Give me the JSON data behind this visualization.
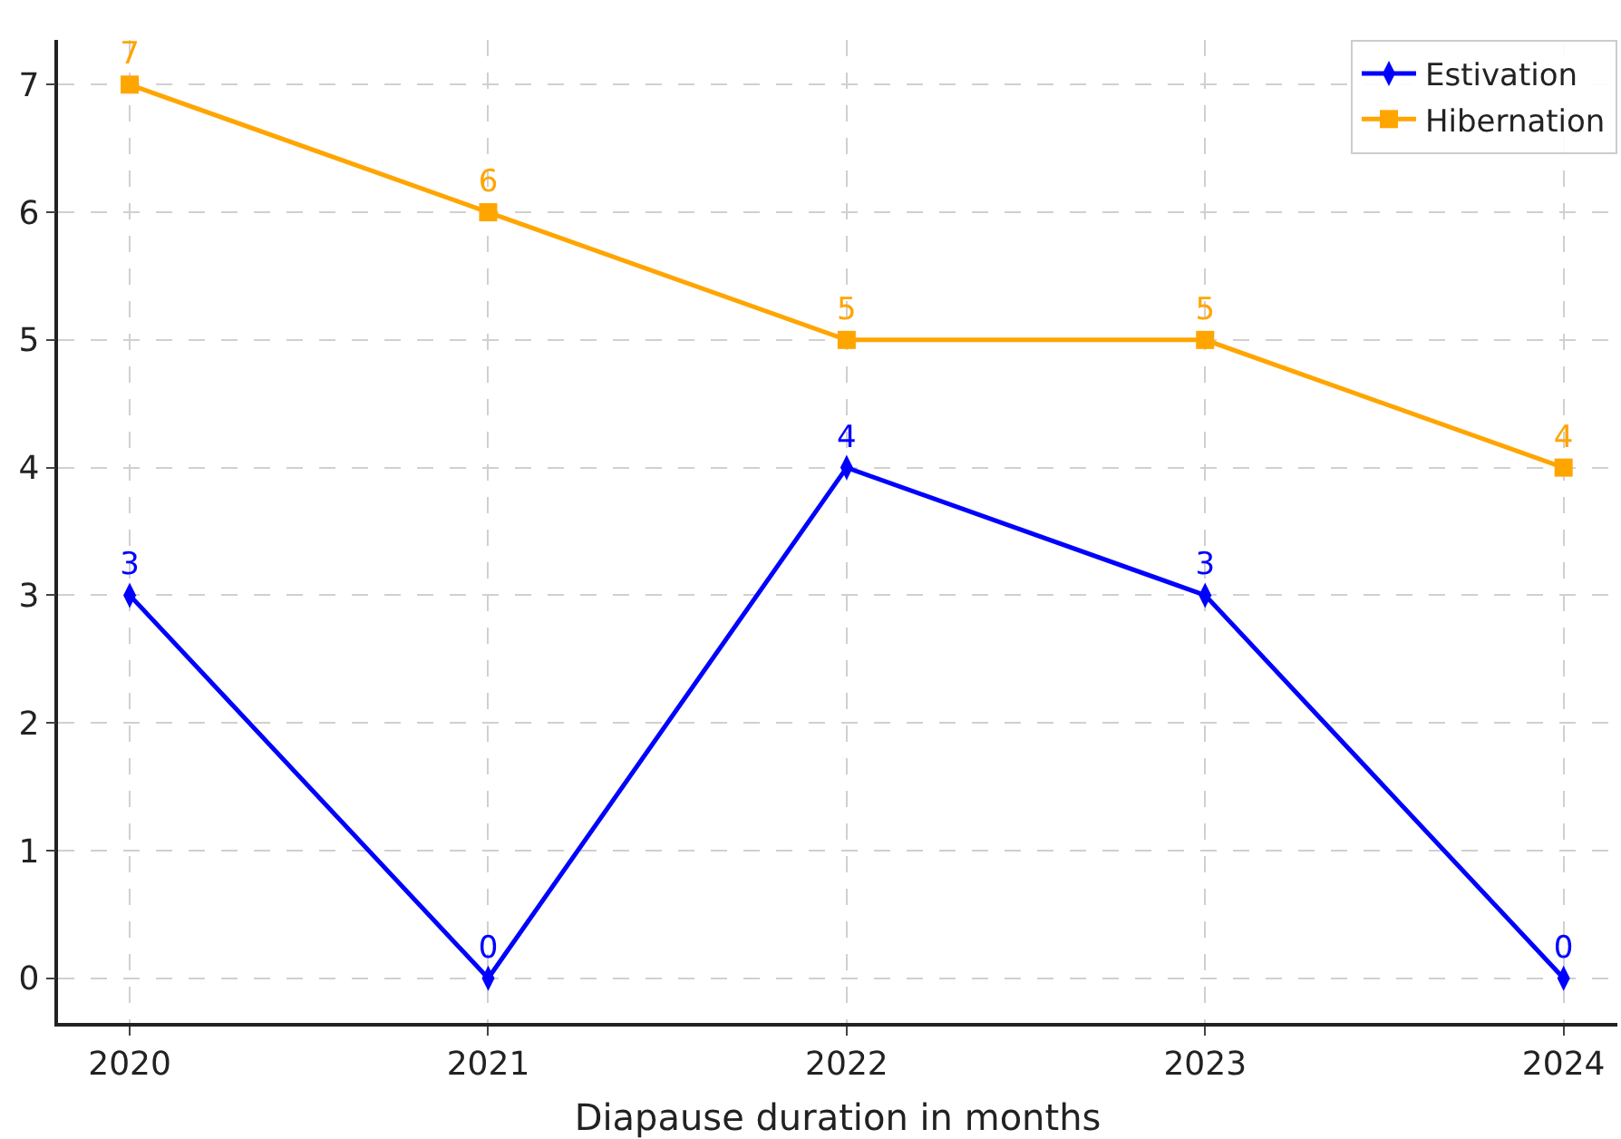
{
  "chart_data": {
    "type": "line",
    "xlabel": "Diapause duration in months",
    "categories": [
      "2020",
      "2021",
      "2022",
      "2023",
      "2024"
    ],
    "series": [
      {
        "name": "Estivation",
        "color": "#0000ff",
        "marker": "diamond",
        "values": [
          3,
          0,
          4,
          3,
          0
        ]
      },
      {
        "name": "Hibernation",
        "color": "#ffa500",
        "marker": "square",
        "values": [
          7,
          6,
          5,
          5,
          4
        ]
      }
    ],
    "ylim": [
      -0.35,
      7.35
    ],
    "yticks": [
      0,
      1,
      2,
      3,
      4,
      5,
      6,
      7
    ],
    "grid": true,
    "legend": "top right",
    "data_labels": true,
    "line_style": "solid"
  }
}
